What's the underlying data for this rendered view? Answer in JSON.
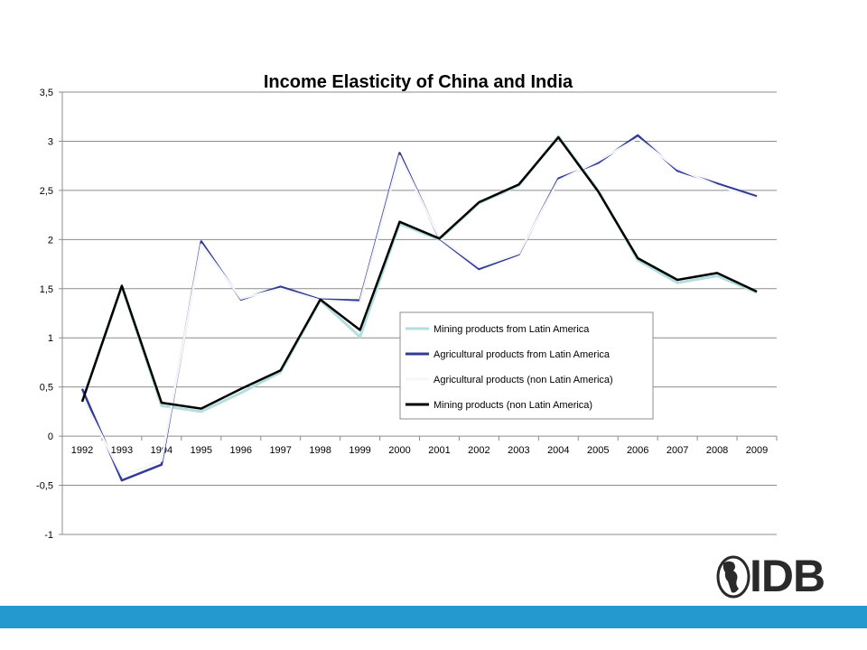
{
  "chart_data": {
    "type": "line",
    "title": "Income Elasticity of China and India",
    "xlabel": "",
    "ylabel": "",
    "x": [
      "1992",
      "1993",
      "1994",
      "1995",
      "1996",
      "1997",
      "1998",
      "1999",
      "2000",
      "2001",
      "2002",
      "2003",
      "2004",
      "2005",
      "2006",
      "2007",
      "2008",
      "2009"
    ],
    "ylim": [
      -1,
      3.5
    ],
    "yticks": [
      -1,
      -0.5,
      0,
      0.5,
      1,
      1.5,
      2,
      2.5,
      3,
      3.5
    ],
    "ytick_labels": [
      "-1",
      "-0,5",
      "0",
      "0,5",
      "1",
      "1,5",
      "2",
      "2,5",
      "3",
      "3,5"
    ],
    "grid": "horizontal",
    "legend_position": "center-right",
    "series": [
      {
        "name": "Mining products from Latin America",
        "color": "#b3dede",
        "values": [
          0.36,
          1.52,
          0.31,
          0.25,
          0.44,
          0.65,
          1.38,
          1.01,
          2.16,
          2.0,
          2.37,
          2.55,
          3.05,
          2.5,
          1.79,
          1.56,
          1.63,
          1.46
        ]
      },
      {
        "name": "Agricultural products from Latin America",
        "color": "#323b97",
        "values": [
          0.48,
          -0.45,
          -0.29,
          1.98,
          1.39,
          1.52,
          1.39,
          1.38,
          2.88,
          2.01,
          1.7,
          1.85,
          2.62,
          2.78,
          3.06,
          2.7,
          2.57,
          2.44
        ]
      },
      {
        "name": "Agricultural products (non Latin America)",
        "color": "#f4f6f8",
        "values": [
          0.4,
          -0.4,
          -0.25,
          1.95,
          1.4,
          1.5,
          1.38,
          1.36,
          2.85,
          2.02,
          1.72,
          1.86,
          2.6,
          2.8,
          3.03,
          2.72,
          2.55,
          2.42
        ]
      },
      {
        "name": "Mining products (non Latin America)",
        "color": "#000000",
        "values": [
          0.35,
          1.53,
          0.34,
          0.28,
          0.48,
          0.67,
          1.39,
          1.08,
          2.18,
          2.01,
          2.38,
          2.56,
          3.04,
          2.49,
          1.81,
          1.59,
          1.66,
          1.47
        ]
      }
    ]
  },
  "footer": {
    "logo_text": "IDB",
    "bar_color": "#2399cf"
  }
}
